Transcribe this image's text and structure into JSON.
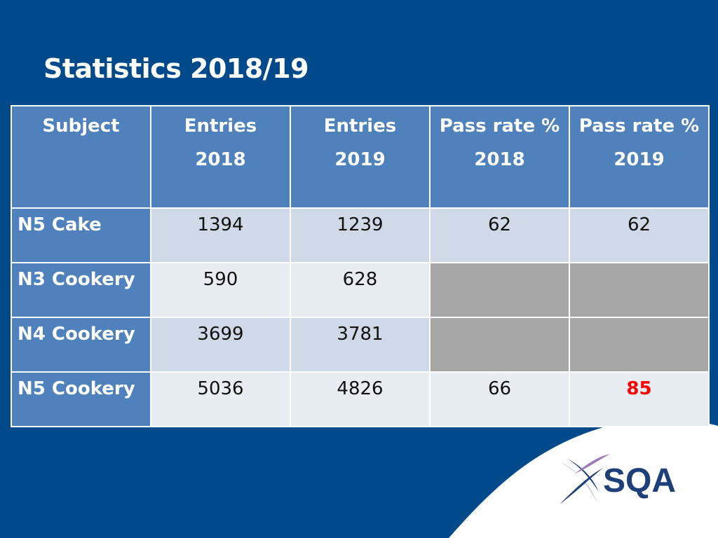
{
  "title": "Statistics 2018/19",
  "table": {
    "headers": [
      [
        "Subject"
      ],
      [
        "Entries",
        "2018"
      ],
      [
        "Entries",
        "2019"
      ],
      [
        "Pass rate %",
        "2018"
      ],
      [
        "Pass rate %",
        "2019"
      ]
    ],
    "rows": [
      {
        "subject": "N5 Cake",
        "entries_2018": "1394",
        "entries_2019": "1239",
        "pass_2018": "62",
        "pass_2019": "62"
      },
      {
        "subject": "N3 Cookery",
        "entries_2018": "590",
        "entries_2019": "628",
        "pass_2018": "",
        "pass_2019": ""
      },
      {
        "subject": "N4 Cookery",
        "entries_2018": "3699",
        "entries_2019": "3781",
        "pass_2018": "",
        "pass_2019": ""
      },
      {
        "subject": "N5 Cookery",
        "entries_2018": "5036",
        "entries_2019": "4826",
        "pass_2018": "66",
        "pass_2019": "85"
      }
    ]
  },
  "logo": {
    "text": "SQA",
    "icon": "sqa-saltire-icon"
  },
  "colors": {
    "background": "#004a8c",
    "header": "#4f81bd",
    "band_a": "#cfd9e8",
    "band_b": "#e8edf3",
    "not_applicable": "#a6a6a6",
    "highlight": "#ff0000"
  }
}
